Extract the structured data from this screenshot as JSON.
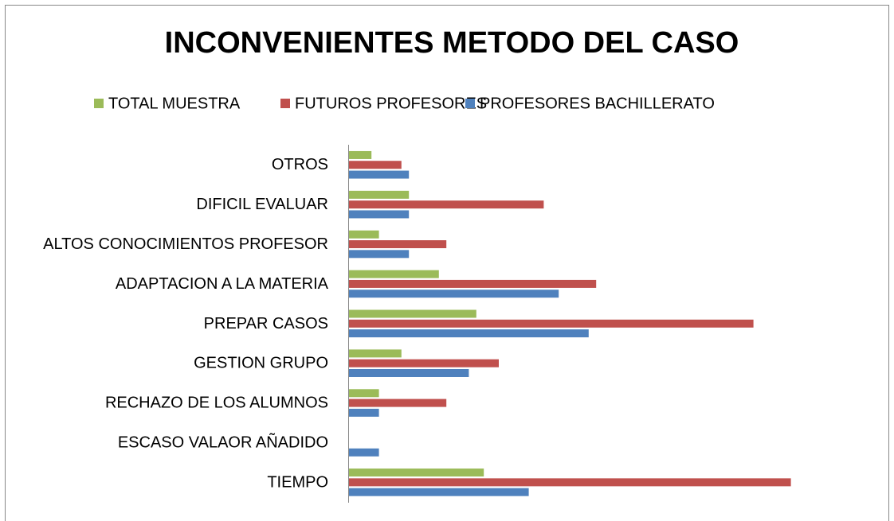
{
  "chart_data": {
    "type": "barh",
    "title": "INCONVENIENTES METODO DEL CASO",
    "categories": [
      "OTROS",
      "DIFICIL EVALUAR",
      "ALTOS CONOCIMIENTOS PROFESOR",
      "ADAPTACION A LA MATERIA",
      "PREPAR CASOS",
      "GESTION GRUPO",
      "RECHAZO DE LOS ALUMNOS",
      "ESCASO VALAOR AÑADIDO",
      "TIEMPO"
    ],
    "series": [
      {
        "name": "TOTAL MUESTRA",
        "color": "#9bbb59",
        "values": [
          3,
          8,
          4,
          12,
          17,
          7,
          4,
          0,
          18
        ]
      },
      {
        "name": "FUTUROS PROFESORES",
        "color": "#c0504d",
        "values": [
          7,
          26,
          13,
          33,
          54,
          20,
          13,
          0,
          59
        ]
      },
      {
        "name": "PROFESORES BACHILLERATO",
        "color": "#4f81bd",
        "values": [
          8,
          8,
          8,
          28,
          32,
          16,
          4,
          4,
          24
        ]
      }
    ],
    "xlim": [
      0,
      60
    ],
    "legend": "top"
  }
}
